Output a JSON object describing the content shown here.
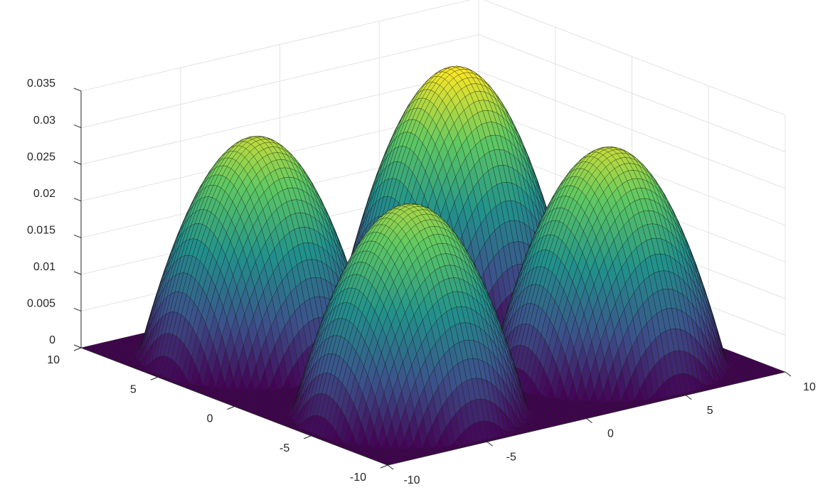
{
  "chart_data": {
    "type": "surface",
    "title": "",
    "xlabel": "",
    "ylabel": "",
    "zlabel": "",
    "colormap": "viridis",
    "colormap_stops": [
      "#440154",
      "#3b528b",
      "#21918c",
      "#5ec962",
      "#fde725"
    ],
    "xlim": [
      -10,
      10
    ],
    "ylim": [
      -10,
      10
    ],
    "zlim": [
      0,
      0.035
    ],
    "x_ticks": [
      -10,
      -5,
      0,
      5,
      10
    ],
    "y_ticks": [
      -10,
      -5,
      0,
      5,
      10
    ],
    "z_ticks": [
      0,
      0.005,
      0.01,
      0.015,
      0.02,
      0.025,
      0.03,
      0.035
    ],
    "x_tick_labels": [
      "-10",
      "-5",
      "0",
      "5",
      "10"
    ],
    "y_tick_labels": [
      "-10",
      "-5",
      "0",
      "5",
      "10"
    ],
    "z_tick_labels": [
      "0",
      "0.005",
      "0.01",
      "0.015",
      "0.02",
      "0.025",
      "0.03",
      "0.035"
    ],
    "grid": true,
    "grid_resolution": 81,
    "peaks": [
      {
        "x": -5,
        "y": 5,
        "height": 0.0295,
        "radius": 4.7
      },
      {
        "x": 5,
        "y": 5,
        "height": 0.0327,
        "radius": 4.7
      },
      {
        "x": -5,
        "y": -5,
        "height": 0.0283,
        "radius": 4.7
      },
      {
        "x": 5,
        "y": -5,
        "height": 0.0297,
        "radius": 4.7
      }
    ],
    "floor_value": 0
  }
}
